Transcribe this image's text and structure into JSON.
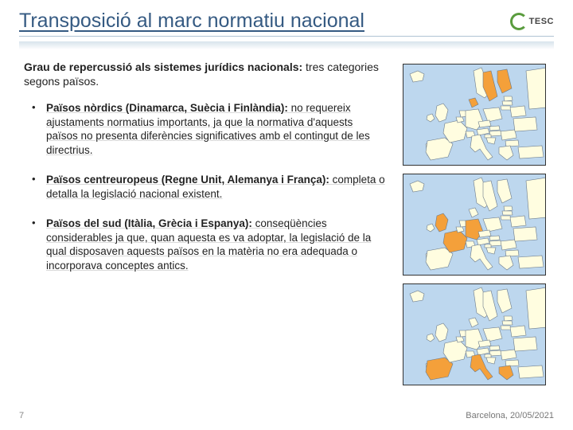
{
  "title": "Transposició al marc normatiu nacional",
  "logo": {
    "text": "TESC"
  },
  "intro": {
    "bold": "Grau de repercussió als sistemes jurídics nacionals:",
    "rest": " tres categories segons països."
  },
  "bullets": [
    {
      "bold": "Països nòrdics (Dinamarca, Suècia i Finlàndia):",
      "rest": " no requereix ajustaments normatius importants, ja que la normativa d'aquests països no presenta diferències significatives amb el contingut de les directrius."
    },
    {
      "bold": "Països centreuropeus (Regne Unit, Alemanya i França):",
      "rest": " completa o detalla la legislació nacional existent."
    },
    {
      "bold": "Països del sud (Itàlia, Grècia i Espanya):",
      "rest": " conseqüències considerables ja que, quan aquesta es va adoptar, la legislació de la qual disposaven aquests països en la matèria no era adequada o incorporava conceptes antics."
    }
  ],
  "maps": {
    "land_color": "#fffde0",
    "highlight_color": "#f4a03a",
    "water_color": "#bdd7ee",
    "stroke": "#6b7a8a",
    "nordic": [
      "DK",
      "SE",
      "FI"
    ],
    "central": [
      "UK",
      "DE",
      "FR"
    ],
    "south": [
      "IT",
      "GR",
      "ES"
    ]
  },
  "footer": {
    "page": "7",
    "location": "Barcelona, 20/05/2021"
  }
}
